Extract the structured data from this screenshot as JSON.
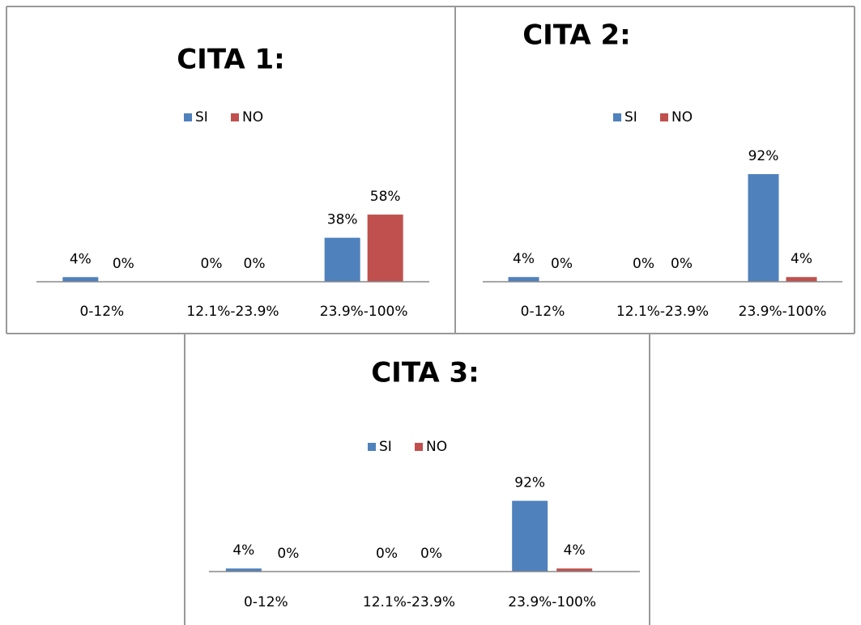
{
  "chart_data": [
    {
      "type": "bar",
      "title": "CITA 1:",
      "categories": [
        "0-12%",
        "12.1%-23.9%",
        "23.9%-100%"
      ],
      "legend": "top",
      "series": [
        {
          "name": "SI",
          "color": "#4f81bd",
          "values": [
            4,
            0,
            38
          ],
          "value_labels": [
            "4%",
            "0%",
            "38%"
          ]
        },
        {
          "name": "NO",
          "color": "#c0504d",
          "values": [
            0,
            0,
            58
          ],
          "value_labels": [
            "0%",
            "0%",
            "58%"
          ]
        }
      ]
    },
    {
      "type": "bar",
      "title": "CITA 2:",
      "categories": [
        "0-12%",
        "12.1%-23.9%",
        "23.9%-100%"
      ],
      "legend": "top",
      "series": [
        {
          "name": "SI",
          "color": "#4f81bd",
          "values": [
            4,
            0,
            92
          ],
          "value_labels": [
            "4%",
            "0%",
            "92%"
          ]
        },
        {
          "name": "NO",
          "color": "#c0504d",
          "values": [
            0,
            0,
            4
          ],
          "value_labels": [
            "0%",
            "0%",
            "4%"
          ]
        }
      ]
    },
    {
      "type": "bar",
      "title": "CITA 3:",
      "categories": [
        "0-12%",
        "12.1%-23.9%",
        "23.9%-100%"
      ],
      "legend": "top",
      "series": [
        {
          "name": "SI",
          "color": "#4f81bd",
          "values": [
            4,
            0,
            92
          ],
          "value_labels": [
            "4%",
            "0%",
            "92%"
          ]
        },
        {
          "name": "NO",
          "color": "#c0504d",
          "values": [
            0,
            0,
            4
          ],
          "value_labels": [
            "0%",
            "0%",
            "4%"
          ]
        }
      ]
    }
  ]
}
